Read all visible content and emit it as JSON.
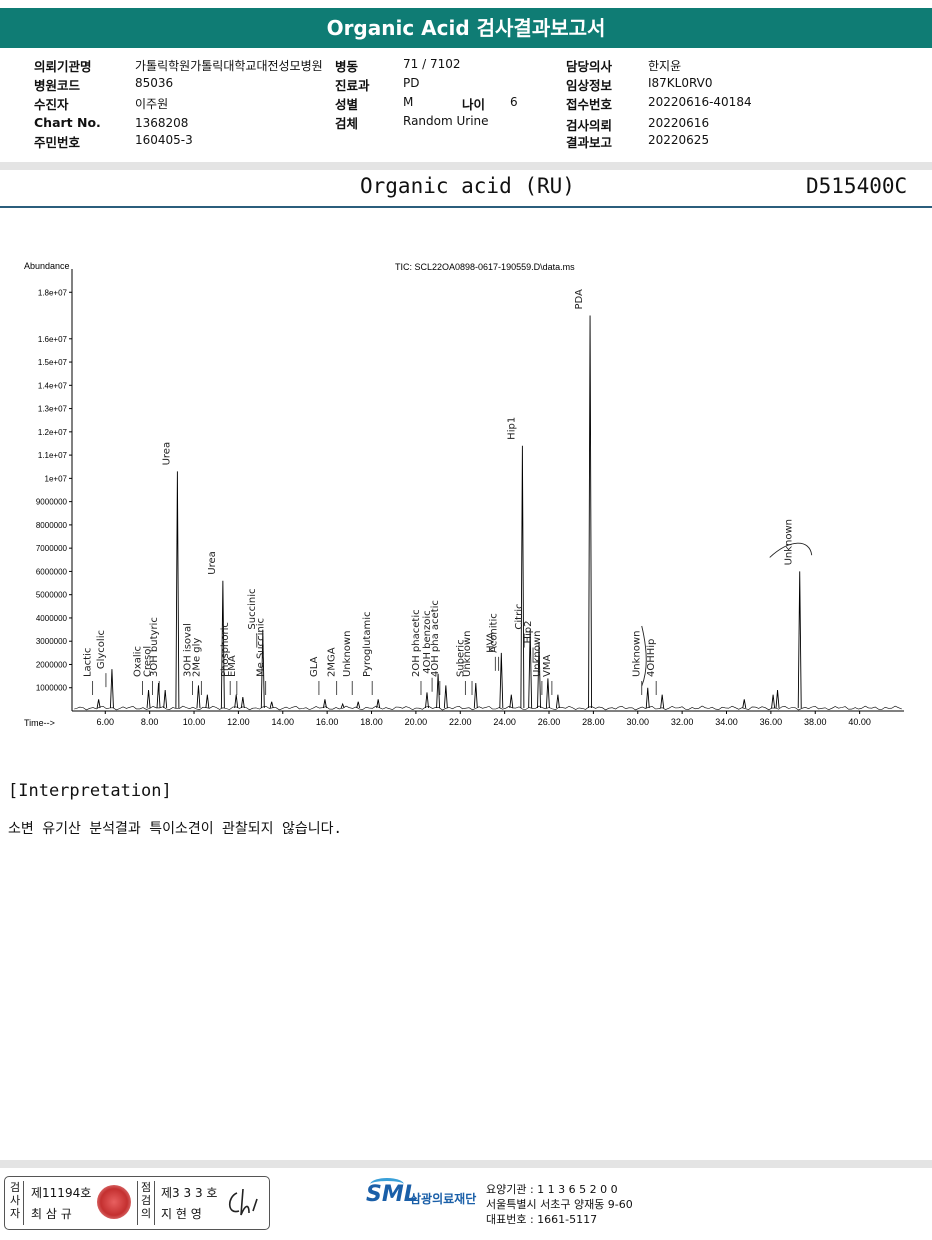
{
  "report": {
    "title": "Organic Acid 검사결과보고서",
    "info_left": [
      {
        "label": "의뢰기관명",
        "value": "가톨릭학원가톨릭대학교대전성모병원"
      },
      {
        "label": "병원코드",
        "value": "85036"
      },
      {
        "label": "수진자",
        "value": "이주원"
      },
      {
        "label": "Chart No.",
        "value": "1368208"
      },
      {
        "label": "주민번호",
        "value": "160405-3"
      }
    ],
    "info_mid": [
      {
        "label": "병동",
        "value": "71 / 7102"
      },
      {
        "label": "진료과",
        "value": "PD"
      },
      {
        "label": "성별",
        "value": "M"
      },
      {
        "label": "검체",
        "value": "Random Urine"
      }
    ],
    "age_label": "나이",
    "age_value": "6",
    "info_right": [
      {
        "label": "담당의사",
        "value": "한지윤"
      },
      {
        "label": "임상정보",
        "value": "I87KL0RV0"
      },
      {
        "label": "접수번호",
        "value": "20220616-40184"
      },
      {
        "label": "검사의뢰",
        "value": "20220616"
      },
      {
        "label": "결과보고",
        "value": "20220625"
      }
    ],
    "section_title": "Organic acid (RU)",
    "code": "D515400C",
    "interpretation_heading": "[Interpretation]",
    "interpretation_text": "소변 유기산 분석결과 특이소견이 관찰되지 않습니다."
  },
  "chart_data": {
    "type": "line",
    "title": "TIC: SCL22OA0898-0617-190559.D\\data.ms",
    "ylabel": "Abundance",
    "xlabel": "Time-->",
    "xlim": [
      4.5,
      42.0
    ],
    "ylim": [
      0,
      19000000
    ],
    "x_ticks": [
      "6.00",
      "8.00",
      "10.00",
      "12.00",
      "14.00",
      "16.00",
      "18.00",
      "20.00",
      "22.00",
      "24.00",
      "26.00",
      "28.00",
      "30.00",
      "32.00",
      "34.00",
      "36.00",
      "38.00",
      "40.00"
    ],
    "y_ticks": [
      "1000000",
      "2000000",
      "3000000",
      "4000000",
      "5000000",
      "6000000",
      "7000000",
      "8000000",
      "9000000",
      "1e+07",
      "1.1e+07",
      "1.2e+07",
      "1.3e+07",
      "1.4e+07",
      "1.5e+07",
      "1.6e+07"
    ],
    "y_tick_extra": [
      "1.8e+07"
    ],
    "peaks": [
      {
        "rt": 5.7,
        "h": 500000
      },
      {
        "rt": 6.3,
        "h": 1800000
      },
      {
        "rt": 7.95,
        "h": 900000
      },
      {
        "rt": 8.4,
        "h": 1200000
      },
      {
        "rt": 8.7,
        "h": 900000
      },
      {
        "rt": 9.25,
        "h": 10300000
      },
      {
        "rt": 10.2,
        "h": 1100000
      },
      {
        "rt": 10.6,
        "h": 700000
      },
      {
        "rt": 11.3,
        "h": 5600000
      },
      {
        "rt": 11.9,
        "h": 700000
      },
      {
        "rt": 12.2,
        "h": 600000
      },
      {
        "rt": 13.1,
        "h": 3500000
      },
      {
        "rt": 13.5,
        "h": 400000
      },
      {
        "rt": 15.9,
        "h": 500000
      },
      {
        "rt": 16.7,
        "h": 300000
      },
      {
        "rt": 17.4,
        "h": 400000
      },
      {
        "rt": 18.3,
        "h": 500000
      },
      {
        "rt": 20.5,
        "h": 800000
      },
      {
        "rt": 21.0,
        "h": 1600000
      },
      {
        "rt": 21.35,
        "h": 1100000
      },
      {
        "rt": 22.7,
        "h": 1200000
      },
      {
        "rt": 23.85,
        "h": 2500000
      },
      {
        "rt": 24.3,
        "h": 700000
      },
      {
        "rt": 24.8,
        "h": 11400000
      },
      {
        "rt": 25.15,
        "h": 3500000
      },
      {
        "rt": 25.55,
        "h": 2900000
      },
      {
        "rt": 25.95,
        "h": 1400000
      },
      {
        "rt": 26.4,
        "h": 700000
      },
      {
        "rt": 27.85,
        "h": 17000000
      },
      {
        "rt": 30.45,
        "h": 1000000
      },
      {
        "rt": 31.1,
        "h": 700000
      },
      {
        "rt": 34.8,
        "h": 500000
      },
      {
        "rt": 36.1,
        "h": 700000
      },
      {
        "rt": 36.3,
        "h": 900000
      },
      {
        "rt": 37.3,
        "h": 6000000
      }
    ],
    "annotations": [
      {
        "text": "Lactic",
        "rt": 5.7
      },
      {
        "text": "Glycolic",
        "rt": 6.3
      },
      {
        "text": "Oxalic",
        "rt": 7.95
      },
      {
        "text": "3OH butyric",
        "rt": 8.7
      },
      {
        "text": "Cresol",
        "rt": 8.4
      },
      {
        "text": "Urea",
        "rt": 9.25
      },
      {
        "text": "3OH isoval",
        "rt": 10.2
      },
      {
        "text": "2Me gly",
        "rt": 10.6
      },
      {
        "text": "Urea",
        "rt": 11.3
      },
      {
        "text": "Phosphoric",
        "rt": 11.9
      },
      {
        "text": "EMA",
        "rt": 12.2
      },
      {
        "text": "Succinic",
        "rt": 13.1
      },
      {
        "text": "Me Succinic",
        "rt": 13.5
      },
      {
        "text": "GLA",
        "rt": 15.9
      },
      {
        "text": "2MGA",
        "rt": 16.7
      },
      {
        "text": "Unknown",
        "rt": 17.4
      },
      {
        "text": "Pyroglutamic",
        "rt": 18.3
      },
      {
        "text": "2OH phacetic",
        "rt": 20.5
      },
      {
        "text": "4OH benzoic",
        "rt": 21.0
      },
      {
        "text": "4OH pha acetic",
        "rt": 21.35
      },
      {
        "text": "Suberic",
        "rt": 22.5
      },
      {
        "text": "Unknown",
        "rt": 22.8
      },
      {
        "text": "HVA",
        "rt": 23.85
      },
      {
        "text": "Aconitic",
        "rt": 24.0
      },
      {
        "text": "Hip1",
        "rt": 24.8
      },
      {
        "text": "Citric",
        "rt": 25.15
      },
      {
        "text": "Hip2",
        "rt": 25.55
      },
      {
        "text": "Unknown",
        "rt": 25.95
      },
      {
        "text": "VMA",
        "rt": 26.4
      },
      {
        "text": "PDA",
        "rt": 27.85
      },
      {
        "text": "Unknown",
        "rt": 30.45
      },
      {
        "text": "4OHHip",
        "rt": 31.1
      },
      {
        "text": "Unknown",
        "rt": 37.3
      }
    ]
  },
  "footer": {
    "examiner_label": "검사자",
    "examiner_no": "제11194호",
    "examiner_name": "최 삼 규",
    "reviewer_label": "점검의",
    "reviewer_no": "제3 3 3 호",
    "reviewer_name": "지 현 영",
    "logo_text": "SML",
    "org_name": "삼광의료재단",
    "addr1": "요양기관 : 1 1 3 6 5 2 0 0",
    "addr2": "서울특별시 서초구 양재동 9-60",
    "addr3": "대표번호 : 1661-5117"
  }
}
